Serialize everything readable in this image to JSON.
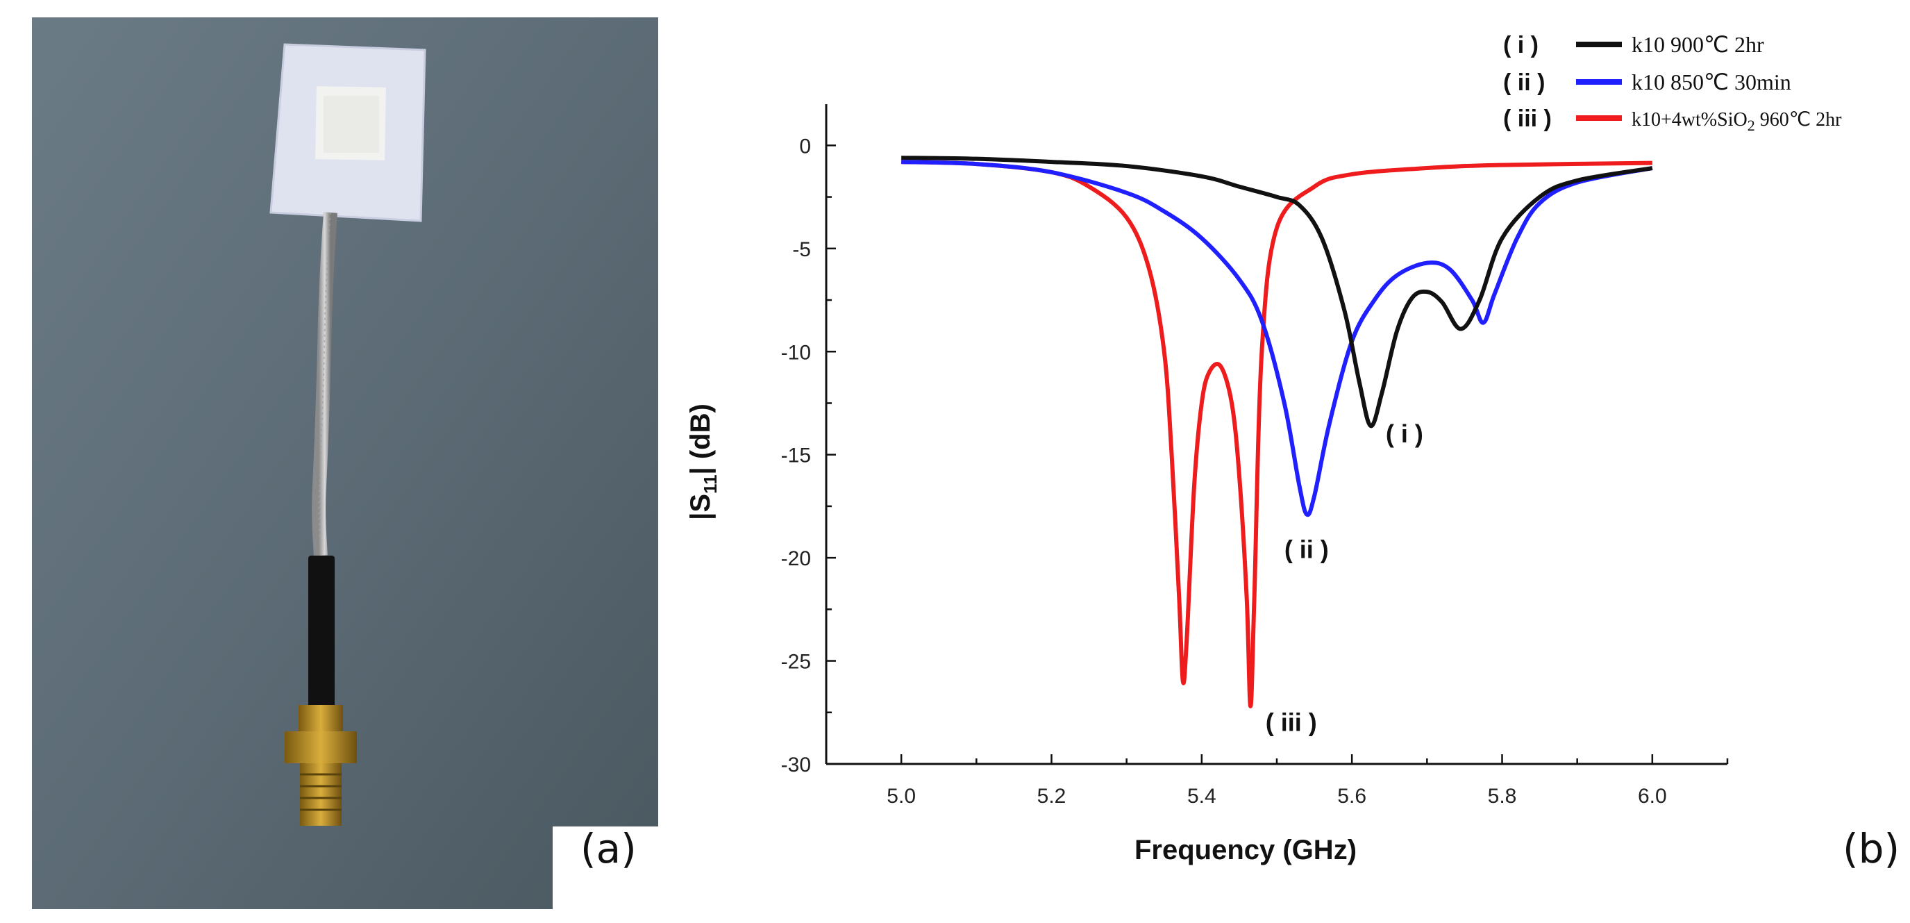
{
  "panels": {
    "a": "(a)",
    "b": "(b)"
  },
  "photo": {
    "icon": "antenna-photo"
  },
  "chart_data": {
    "type": "line",
    "xlabel": "Frequency (GHz)",
    "ylabel_main": "|S",
    "ylabel_sub": "11",
    "ylabel_tail": "| (dB)",
    "xlim": [
      4.9,
      6.1
    ],
    "ylim": [
      -30,
      2
    ],
    "xticks": [
      "5.0",
      "5.2",
      "5.4",
      "5.6",
      "5.8",
      "6.0"
    ],
    "yticks": [
      "0",
      "-5",
      "-10",
      "-15",
      "-20",
      "-25",
      "-30"
    ],
    "series": [
      {
        "tag": "( i )",
        "name": "k10 900℃ 2hr",
        "color": "#111111",
        "annotation": "( i )",
        "x": [
          5.0,
          5.1,
          5.2,
          5.3,
          5.4,
          5.45,
          5.5,
          5.53,
          5.56,
          5.59,
          5.61,
          5.625,
          5.64,
          5.66,
          5.68,
          5.7,
          5.72,
          5.745,
          5.77,
          5.8,
          5.85,
          5.9,
          6.0
        ],
        "y": [
          -0.6,
          -0.65,
          -0.8,
          -1.0,
          -1.5,
          -2.0,
          -2.5,
          -2.9,
          -4.5,
          -8.0,
          -11.5,
          -13.6,
          -12.0,
          -9.0,
          -7.4,
          -7.1,
          -7.6,
          -8.9,
          -7.5,
          -4.5,
          -2.5,
          -1.7,
          -1.1
        ]
      },
      {
        "tag": "( ii )",
        "name": "k10 850℃ 30min",
        "color": "#1f1fff",
        "annotation": "( ii )",
        "x": [
          5.0,
          5.1,
          5.2,
          5.3,
          5.35,
          5.4,
          5.45,
          5.48,
          5.51,
          5.53,
          5.54,
          5.55,
          5.57,
          5.6,
          5.63,
          5.66,
          5.7,
          5.73,
          5.76,
          5.775,
          5.79,
          5.82,
          5.85,
          5.9,
          6.0
        ],
        "y": [
          -0.8,
          -0.9,
          -1.3,
          -2.3,
          -3.2,
          -4.5,
          -6.5,
          -8.5,
          -12.5,
          -16.5,
          -17.9,
          -17.0,
          -13.5,
          -9.5,
          -7.5,
          -6.3,
          -5.7,
          -6.0,
          -7.5,
          -8.6,
          -7.2,
          -4.5,
          -2.8,
          -1.8,
          -1.1
        ]
      },
      {
        "tag": "( iii )",
        "name": "k10+4wt%SiO",
        "name_sub": "2",
        "name_tail": " 960℃ 2hr",
        "color": "#ee1c1c",
        "annotation": "( iii )",
        "x": [
          5.0,
          5.1,
          5.2,
          5.25,
          5.3,
          5.33,
          5.35,
          5.36,
          5.37,
          5.375,
          5.38,
          5.39,
          5.4,
          5.41,
          5.425,
          5.44,
          5.45,
          5.46,
          5.465,
          5.47,
          5.48,
          5.5,
          5.55,
          5.6,
          5.7,
          5.8,
          6.0
        ],
        "y": [
          -0.8,
          -0.9,
          -1.3,
          -2.0,
          -3.5,
          -6.0,
          -10.0,
          -15.0,
          -22.0,
          -26.0,
          -24.0,
          -16.5,
          -12.5,
          -11.0,
          -10.7,
          -12.5,
          -16.0,
          -22.0,
          -27.2,
          -22.0,
          -10.0,
          -4.0,
          -2.0,
          -1.4,
          -1.1,
          -0.95,
          -0.85
        ]
      }
    ]
  }
}
